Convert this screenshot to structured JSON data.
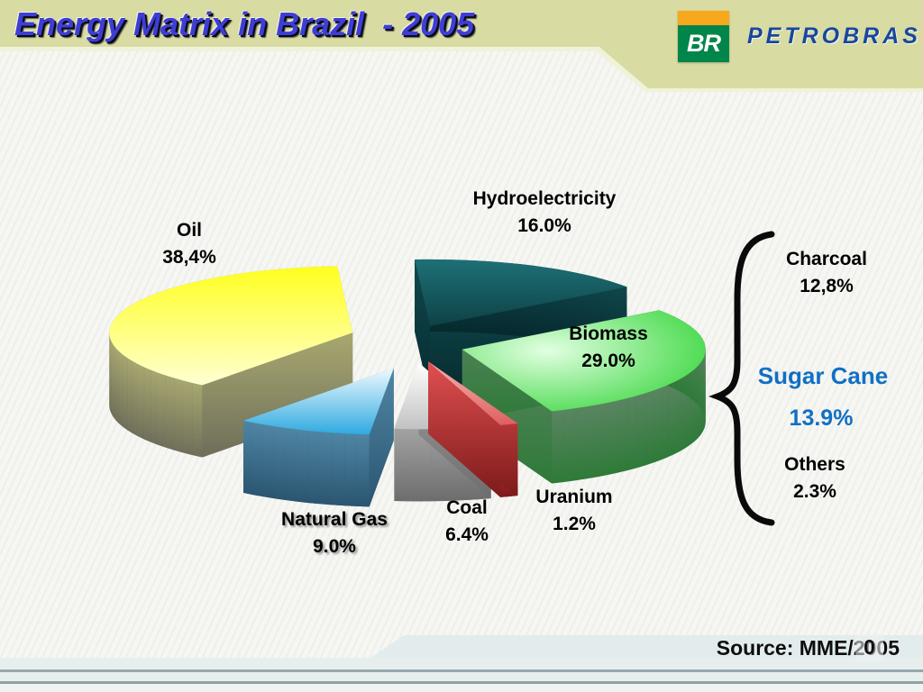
{
  "slide": {
    "title": "Energy Matrix in Brazil  - 2005",
    "banner_color": "#d8dba2",
    "background_color": "#f6f6f3",
    "logo": {
      "monogram": "BR",
      "wordmark": "PETROBRAS",
      "orange": "#f8a81c",
      "green": "#00854a",
      "blue": "#17479e"
    },
    "footer": {
      "slide_number": "0"
    }
  },
  "chart_data": {
    "type": "pie",
    "style": "3d-exploded",
    "title": "Energy Matrix in Brazil - 2005",
    "unit": "%",
    "legend_position": "none",
    "slices": [
      {
        "label": "Hydroelectricity",
        "value": 16.0,
        "display": "16.0%",
        "top_grad": [
          "#1e7076",
          "#0d4246"
        ],
        "side_grad": [
          "#10484d",
          "#062a2e"
        ]
      },
      {
        "label": "Oil",
        "value": 38.4,
        "display": "38,4%",
        "top_grad": [
          "#ffff1e",
          "#ffffd2"
        ],
        "side_grad": [
          "#a8a870",
          "#6e6e5a"
        ]
      },
      {
        "label": "Natural Gas",
        "value": 9.0,
        "display": "9.0%",
        "top_grad": [
          "#eefaff",
          "#2fa9e0"
        ],
        "side_grad": [
          "#4f86a4",
          "#2a5570"
        ]
      },
      {
        "label": "Coal",
        "value": 6.4,
        "display": "6.4%",
        "top_grad": [
          "#ffffff",
          "#c2c2c2"
        ],
        "side_grad": [
          "#a2a2a2",
          "#6d6d6d"
        ]
      },
      {
        "label": "Uranium",
        "value": 1.2,
        "display": "1.2%",
        "top_grad": [
          "#f6b4b4",
          "#de5f5f"
        ],
        "side_grad": [
          "#e05050",
          "#7e1a1a"
        ]
      },
      {
        "label": "Biomass",
        "value": 29.0,
        "display": "29.0%",
        "radial": true,
        "top_grad": [
          "#e2ffe2",
          "#2fd434"
        ],
        "side_grad": [
          "#5a8562",
          "#2e7a38"
        ]
      }
    ],
    "breakdown": {
      "of": "Biomass",
      "items": [
        {
          "label": "Charcoal",
          "value": 12.8,
          "display": "12,8%",
          "color": "#000000"
        },
        {
          "label": "Sugar Cane",
          "value": 13.9,
          "display": "13.9%",
          "color": "#1070c4"
        },
        {
          "label": "Others",
          "value": 2.3,
          "display": "2.3%",
          "color": "#000000"
        }
      ]
    },
    "source": "Source: MME/2005"
  }
}
